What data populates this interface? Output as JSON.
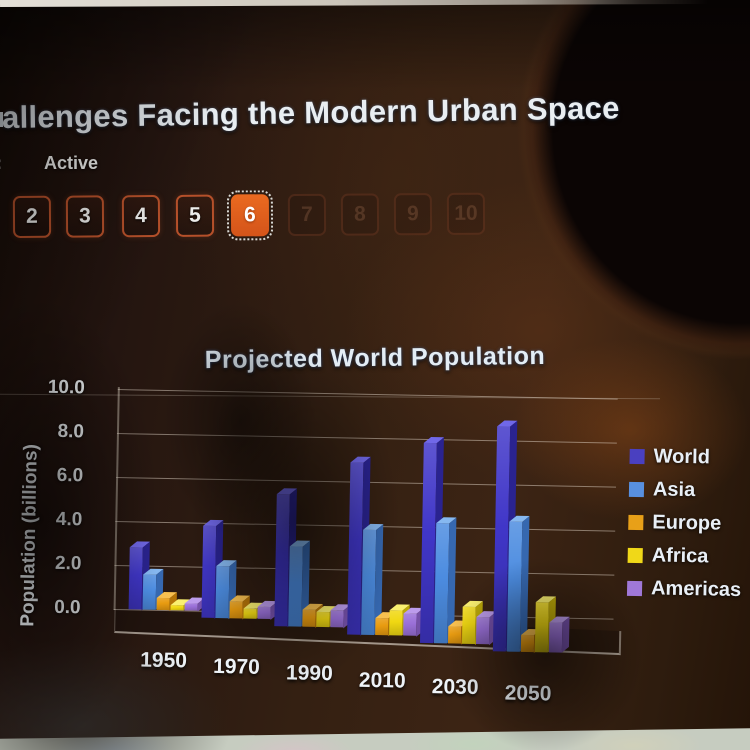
{
  "header": {
    "title": "allenges Facing the Modern Urban Space",
    "status_prefix": ":",
    "status": "Active"
  },
  "question_nav": {
    "buttons": [
      {
        "label": "2",
        "state": "enabled"
      },
      {
        "label": "3",
        "state": "enabled"
      },
      {
        "label": "4",
        "state": "enabled"
      },
      {
        "label": "5",
        "state": "enabled"
      },
      {
        "label": "6",
        "state": "active"
      },
      {
        "label": "7",
        "state": "disabled"
      },
      {
        "label": "8",
        "state": "disabled"
      },
      {
        "label": "9",
        "state": "disabled"
      },
      {
        "label": "10",
        "state": "disabled"
      }
    ]
  },
  "chart_data": {
    "type": "bar",
    "variant": "3d-clustered-column",
    "title": "Projected World Population",
    "xlabel": "",
    "ylabel": "Population (billions)",
    "categories": [
      "1950",
      "1970",
      "1990",
      "2010",
      "2030",
      "2050"
    ],
    "series": [
      {
        "name": "World",
        "values": [
          2.5,
          3.7,
          5.3,
          6.9,
          8.0,
          9.0
        ],
        "color": {
          "front": "#4036c8",
          "top": "#7068e8",
          "side": "#2a2390",
          "legend": "#4a40c0"
        }
      },
      {
        "name": "Asia",
        "values": [
          1.4,
          2.1,
          3.2,
          4.2,
          4.8,
          5.2
        ],
        "color": {
          "front": "#4c8ce0",
          "top": "#86b8f0",
          "side": "#3668b0",
          "legend": "#5890e0"
        }
      },
      {
        "name": "Europe",
        "values": [
          0.5,
          0.7,
          0.7,
          0.7,
          0.7,
          0.7
        ],
        "color": {
          "front": "#e89b10",
          "top": "#f8c050",
          "side": "#b47408",
          "legend": "#e8a018"
        }
      },
      {
        "name": "Africa",
        "values": [
          0.2,
          0.4,
          0.6,
          1.0,
          1.5,
          2.0
        ],
        "color": {
          "front": "#f0d812",
          "top": "#faf070",
          "side": "#bca808",
          "legend": "#f0d818"
        }
      },
      {
        "name": "Americas",
        "values": [
          0.3,
          0.5,
          0.7,
          0.9,
          1.1,
          1.2
        ],
        "color": {
          "front": "#9a70d8",
          "top": "#bc9cec",
          "side": "#7450a8",
          "legend": "#a078d8"
        }
      }
    ],
    "yticks": [
      "0.0",
      "2.0",
      "4.0",
      "6.0",
      "8.0",
      "10.0"
    ],
    "ylim": [
      0,
      10
    ],
    "grid": true,
    "legend_position": "right"
  },
  "colors": {
    "accent_orange": "#b5502a",
    "active_question_fill": "#e2611d",
    "chart_text": "#eef2f6",
    "gridline": "#d8cfc2"
  }
}
